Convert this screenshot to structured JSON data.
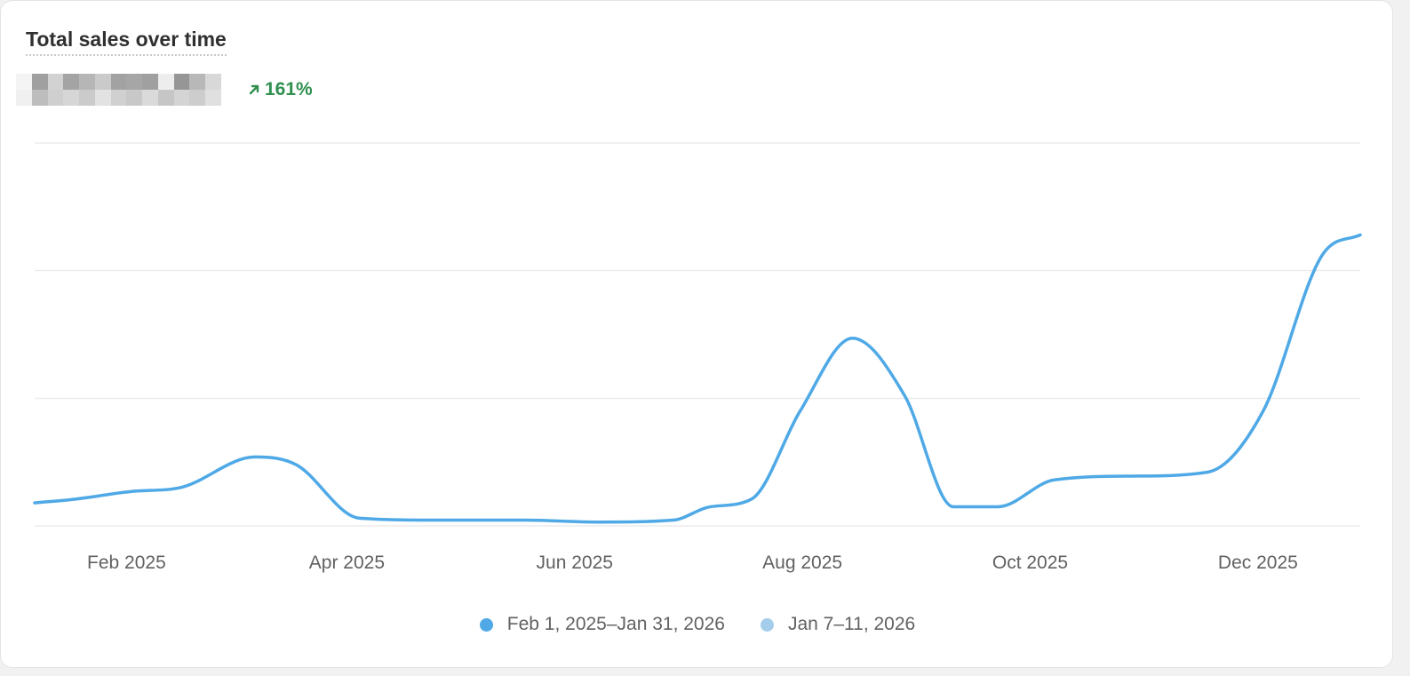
{
  "card": {
    "title": "Total sales over time",
    "change_text": "161%",
    "change_direction": "up",
    "change_color": "#2f8f4e",
    "total_value_redacted": true
  },
  "colors": {
    "primary_series": "#4ea9e6",
    "comparison_series": "#a4cdeb",
    "grid": "#ebebeb"
  },
  "chart_data": {
    "type": "line",
    "title": "Total sales over time",
    "xlabel": "",
    "ylabel": "",
    "x_tick_labels": [
      "Feb 2025",
      "Apr 2025",
      "Jun 2025",
      "Aug 2025",
      "Oct 2025",
      "Dec 2025"
    ],
    "ylim": [
      0,
      1
    ],
    "y_gridlines": [
      0,
      0.333,
      0.667,
      1
    ],
    "y_tick_labels_hidden": true,
    "legend_position": "bottom-center",
    "series": [
      {
        "name": "Feb 1, 2025–Jan 31, 2026",
        "color": "#4ea9e6",
        "points": [
          [
            "2025-01-25",
            0.06
          ],
          [
            "2025-02-05",
            0.07
          ],
          [
            "2025-02-20",
            0.09
          ],
          [
            "2025-03-05",
            0.1
          ],
          [
            "2025-03-25",
            0.18
          ],
          [
            "2025-04-05",
            0.16
          ],
          [
            "2025-04-22",
            0.02
          ],
          [
            "2025-05-15",
            0.015
          ],
          [
            "2025-06-05",
            0.015
          ],
          [
            "2025-06-25",
            0.01
          ],
          [
            "2025-07-15",
            0.015
          ],
          [
            "2025-07-25",
            0.05
          ],
          [
            "2025-08-05",
            0.07
          ],
          [
            "2025-08-18",
            0.3
          ],
          [
            "2025-09-01",
            0.49
          ],
          [
            "2025-09-15",
            0.34
          ],
          [
            "2025-09-28",
            0.05
          ],
          [
            "2025-10-10",
            0.05
          ],
          [
            "2025-10-25",
            0.12
          ],
          [
            "2025-11-15",
            0.13
          ],
          [
            "2025-12-05",
            0.14
          ],
          [
            "2025-12-20",
            0.3
          ],
          [
            "2026-01-05",
            0.71
          ],
          [
            "2026-01-15",
            0.76
          ]
        ]
      },
      {
        "name": "Jan 7–11, 2026",
        "color": "#a4cdeb",
        "points": []
      }
    ]
  }
}
